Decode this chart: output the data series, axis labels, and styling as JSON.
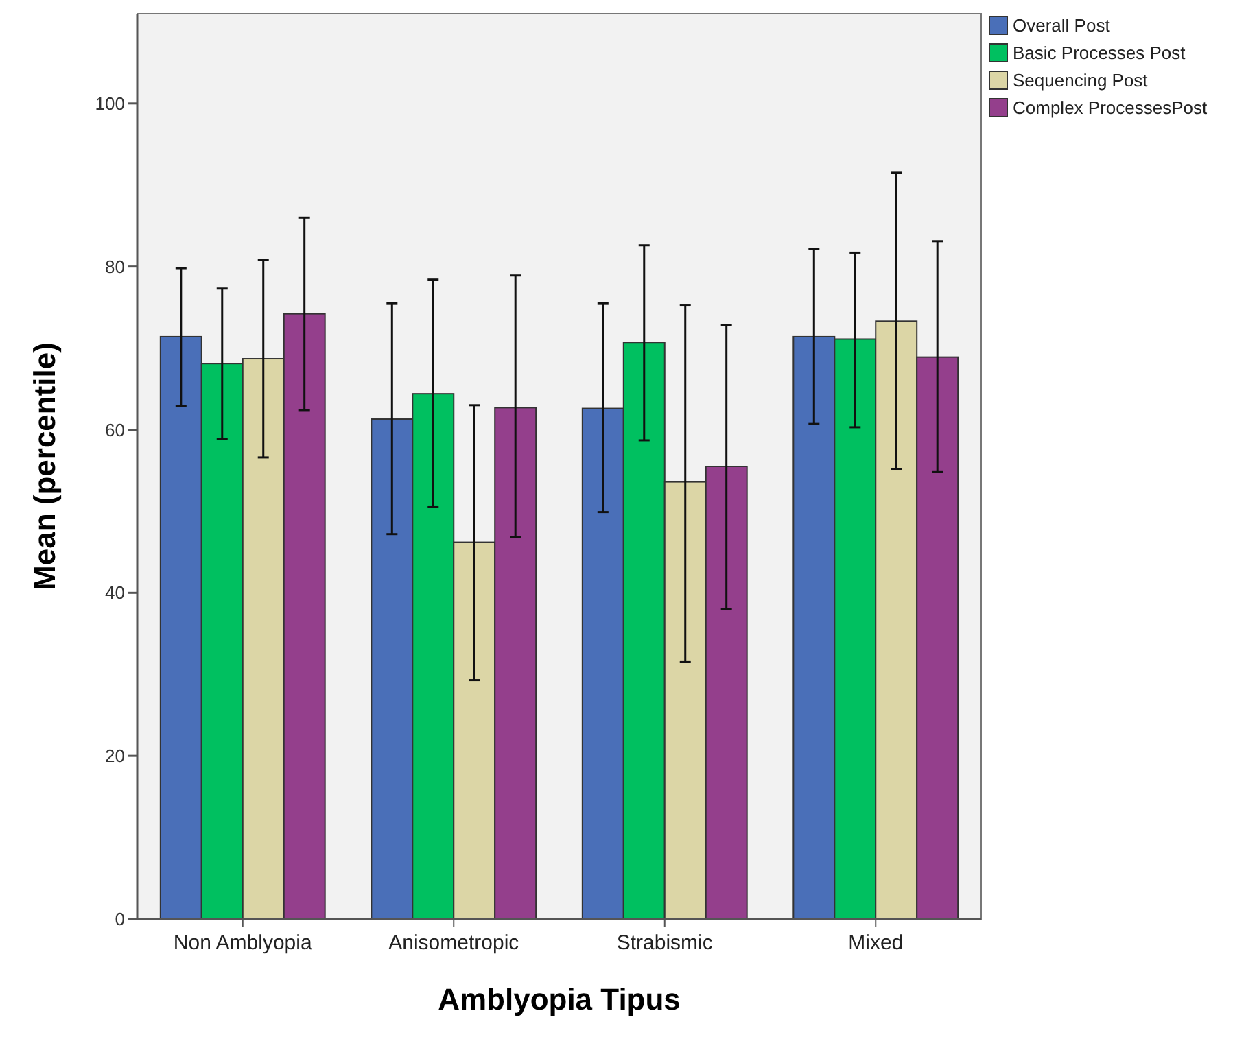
{
  "chart_data": {
    "type": "bar",
    "xlabel": "Amblyopia Tipus",
    "ylabel": "Mean (percentile)",
    "categories": [
      "Non Amblyopia",
      "Anisometropic",
      "Strabismic",
      "Mixed"
    ],
    "series": [
      {
        "name": "Overall Post",
        "color": "#4a6fb8",
        "values": [
          71.4,
          61.3,
          62.6,
          71.4
        ],
        "errors": [
          [
            62.9,
            79.8
          ],
          [
            47.2,
            75.5
          ],
          [
            49.9,
            75.5
          ],
          [
            60.7,
            82.2
          ]
        ]
      },
      {
        "name": "Basic Processes Post",
        "color": "#00c060",
        "values": [
          68.1,
          64.4,
          70.7,
          71.1
        ],
        "errors": [
          [
            58.9,
            77.3
          ],
          [
            50.5,
            78.4
          ],
          [
            58.7,
            82.6
          ],
          [
            60.3,
            81.7
          ]
        ]
      },
      {
        "name": "Sequencing Post",
        "color": "#dcd6a6",
        "values": [
          68.7,
          46.2,
          53.6,
          73.3
        ],
        "errors": [
          [
            56.6,
            80.8
          ],
          [
            29.3,
            63.0
          ],
          [
            31.5,
            75.3
          ],
          [
            55.2,
            91.5
          ]
        ]
      },
      {
        "name": "Complex ProcessesPost",
        "color": "#943f8c",
        "values": [
          74.2,
          62.7,
          55.5,
          68.9
        ],
        "errors": [
          [
            62.4,
            86.0
          ],
          [
            46.8,
            78.9
          ],
          [
            38.0,
            72.8
          ],
          [
            54.8,
            83.1
          ]
        ]
      }
    ],
    "ylim": [
      0,
      111
    ],
    "yticks": [
      0,
      20,
      40,
      60,
      80,
      100
    ],
    "grid": false,
    "legend": "top right"
  }
}
